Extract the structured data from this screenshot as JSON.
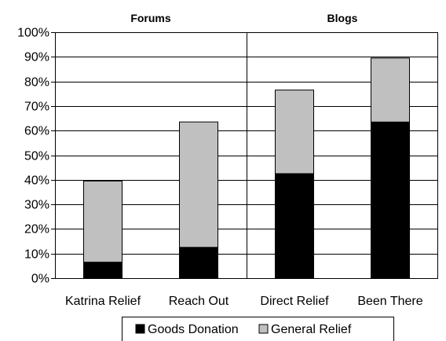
{
  "chart_data": {
    "type": "bar",
    "stacked": true,
    "categories": [
      "Katrina Relief",
      "Reach Out",
      "Direct Relief",
      "Been There"
    ],
    "groups": [
      {
        "label": "Forums",
        "categories": [
          0,
          1
        ]
      },
      {
        "label": "Blogs",
        "categories": [
          2,
          3
        ]
      }
    ],
    "series": [
      {
        "name": "Goods Donation",
        "color": "#000000",
        "values": [
          6.5,
          12.5,
          42.5,
          63.5
        ]
      },
      {
        "name": "General Relief",
        "color": "#c0c0c0",
        "values": [
          33,
          51,
          34,
          26
        ]
      }
    ],
    "ylim": [
      0,
      100
    ],
    "yticks": [
      0,
      10,
      20,
      30,
      40,
      50,
      60,
      70,
      80,
      90,
      100
    ],
    "ytick_labels": [
      "0%",
      "10%",
      "20%",
      "30%",
      "40%",
      "50%",
      "60%",
      "70%",
      "80%",
      "90%",
      "100%"
    ],
    "grid": true,
    "legend_position": "bottom",
    "title": "",
    "xlabel": "",
    "ylabel": ""
  }
}
